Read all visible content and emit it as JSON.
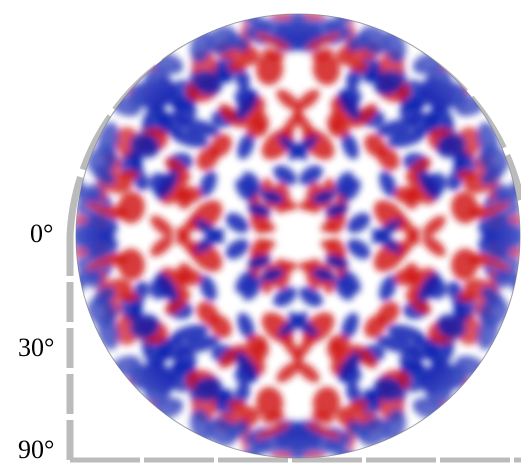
{
  "axis_labels": [
    "0°",
    "30°",
    "90°"
  ]
}
